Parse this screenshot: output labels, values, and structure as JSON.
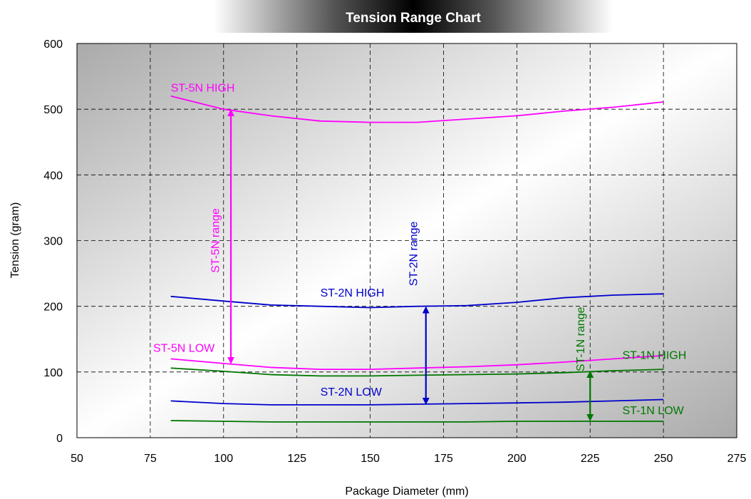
{
  "chart_data": {
    "type": "line",
    "title": "Tension Range Chart",
    "xlabel": "Package Diameter (mm)",
    "ylabel": "Tension (gram)",
    "xlim": [
      50,
      275
    ],
    "ylim": [
      0,
      600
    ],
    "xticks": [
      "50",
      "75",
      "100",
      "125",
      "150",
      "175",
      "200",
      "225",
      "250",
      "275"
    ],
    "yticks": [
      "0",
      "100",
      "200",
      "300",
      "400",
      "500",
      "600"
    ],
    "grid": true,
    "series": [
      {
        "name": "ST-5N HIGH",
        "color": "#ff00ff",
        "x": [
          82,
          100,
          116,
          133,
          150,
          166,
          183,
          200,
          216,
          233,
          250
        ],
        "y": [
          520,
          500,
          490,
          482,
          480,
          480,
          485,
          490,
          497,
          503,
          511
        ]
      },
      {
        "name": "ST-5N LOW",
        "color": "#ff00ff",
        "x": [
          82,
          100,
          116,
          133,
          150,
          166,
          183,
          200,
          216,
          233,
          250
        ],
        "y": [
          120,
          113,
          107,
          104,
          104,
          106,
          108,
          111,
          115,
          120,
          125
        ]
      },
      {
        "name": "ST-2N HIGH",
        "color": "#0000cc",
        "x": [
          82,
          100,
          116,
          133,
          150,
          166,
          183,
          200,
          216,
          233,
          250
        ],
        "y": [
          215,
          208,
          202,
          200,
          198,
          200,
          201,
          206,
          213,
          217,
          219
        ]
      },
      {
        "name": "ST-2N LOW",
        "color": "#0000cc",
        "x": [
          82,
          100,
          116,
          133,
          150,
          166,
          183,
          200,
          216,
          233,
          250
        ],
        "y": [
          56,
          52,
          50,
          50,
          50,
          51,
          52,
          53,
          54,
          56,
          58
        ]
      },
      {
        "name": "ST-1N HIGH",
        "color": "#007700",
        "x": [
          82,
          100,
          116,
          133,
          150,
          166,
          183,
          200,
          216,
          233,
          250
        ],
        "y": [
          106,
          101,
          96,
          94,
          94,
          95,
          96,
          97,
          99,
          102,
          104
        ]
      },
      {
        "name": "ST-1N LOW",
        "color": "#007700",
        "x": [
          82,
          100,
          116,
          133,
          150,
          166,
          183,
          200,
          216,
          233,
          250
        ],
        "y": [
          26,
          25,
          24,
          24,
          24,
          24,
          24,
          25,
          25,
          25,
          25
        ]
      }
    ],
    "ranges": [
      {
        "name": "ST-5N range",
        "color": "#ff00ff",
        "x": 102.5,
        "y_low": 112,
        "y_high": 500
      },
      {
        "name": "ST-2N range",
        "color": "#0000cc",
        "x": 169,
        "y_low": 50,
        "y_high": 200
      },
      {
        "name": "ST-1N range",
        "color": "#007700",
        "x": 225,
        "y_low": 25,
        "y_high": 102
      }
    ],
    "annotations": [
      {
        "text": "ST-5N HIGH",
        "color": "#ff00ff",
        "x": 82,
        "y": 527,
        "rotate": false
      },
      {
        "text": "ST-5N LOW",
        "color": "#ff00ff",
        "x": 76,
        "y": 131,
        "rotate": false
      },
      {
        "text": "ST-2N HIGH",
        "color": "#0000cc",
        "x": 133,
        "y": 215,
        "rotate": false
      },
      {
        "text": "ST-2N LOW",
        "color": "#0000cc",
        "x": 133,
        "y": 64,
        "rotate": false
      },
      {
        "text": "ST-1N HIGH",
        "color": "#007700",
        "x": 236,
        "y": 120,
        "rotate": false
      },
      {
        "text": "ST-1N LOW",
        "color": "#007700",
        "x": 236,
        "y": 36,
        "rotate": false
      },
      {
        "text": "ST-5N range",
        "color": "#ff00ff",
        "x": 98.5,
        "y": 300,
        "rotate": true
      },
      {
        "text": "ST-2N range",
        "color": "#0000cc",
        "x": 166,
        "y": 280,
        "rotate": true
      },
      {
        "text": "ST-1N range",
        "color": "#007700",
        "x": 223,
        "y": 150,
        "rotate": true
      }
    ]
  }
}
